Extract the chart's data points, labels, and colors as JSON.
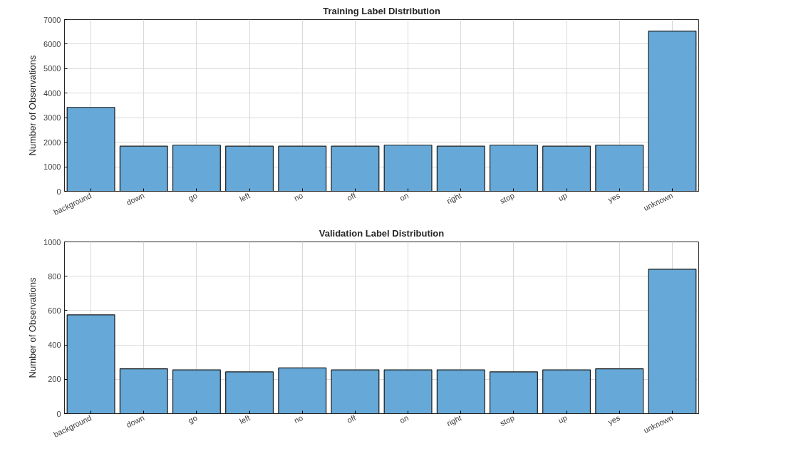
{
  "chart_data": [
    {
      "type": "bar",
      "title": "Training Label Distribution",
      "ylabel": "Number of Observations",
      "categories": [
        "background",
        "down",
        "go",
        "left",
        "no",
        "off",
        "on",
        "right",
        "stop",
        "up",
        "yes",
        "unknown"
      ],
      "values": [
        3420,
        1840,
        1880,
        1840,
        1840,
        1840,
        1880,
        1840,
        1880,
        1840,
        1880,
        6530
      ],
      "color": "#66a8d7",
      "ylim": [
        0,
        7000
      ],
      "yticks": [
        0,
        1000,
        2000,
        3000,
        4000,
        5000,
        6000,
        7000
      ],
      "grid": true
    },
    {
      "type": "bar",
      "title": "Validation Label Distribution",
      "ylabel": "Number of Observations",
      "categories": [
        "background",
        "down",
        "go",
        "left",
        "no",
        "off",
        "on",
        "right",
        "stop",
        "up",
        "yes",
        "unknown"
      ],
      "values": [
        575,
        261,
        255,
        243,
        266,
        255,
        255,
        255,
        243,
        255,
        261,
        841
      ],
      "color": "#66a8d7",
      "ylim": [
        0,
        1000
      ],
      "yticks": [
        0,
        200,
        400,
        600,
        800,
        1000
      ],
      "grid": true
    }
  ]
}
